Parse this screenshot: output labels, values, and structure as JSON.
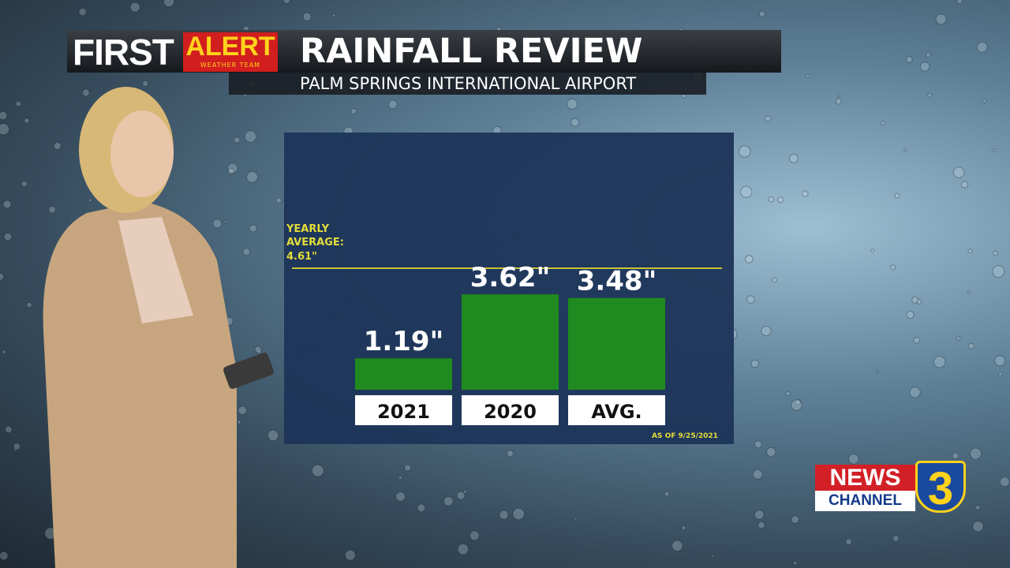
{
  "branding": {
    "first": "FIRST",
    "alert": "ALERT",
    "team": "WEATHER TEAM"
  },
  "chart_data": {
    "type": "bar",
    "title": "RAINFALL REVIEW",
    "subtitle": "PALM SPRINGS INTERNATIONAL AIRPORT",
    "categories": [
      "2021",
      "2020",
      "AVG."
    ],
    "values": [
      1.19,
      3.62,
      3.48
    ],
    "value_labels": [
      "1.19\"",
      "3.62\"",
      "3.48\""
    ],
    "color": "#1f8a1f",
    "reference_line": {
      "label": "YEARLY AVERAGE:",
      "value": 4.61,
      "value_label": "4.61\"",
      "color": "#c9c23c"
    },
    "note": "AS OF 9/25/2021"
  },
  "station_logo": {
    "news": "NEWS",
    "channel": "CHANNEL",
    "number": "3"
  }
}
